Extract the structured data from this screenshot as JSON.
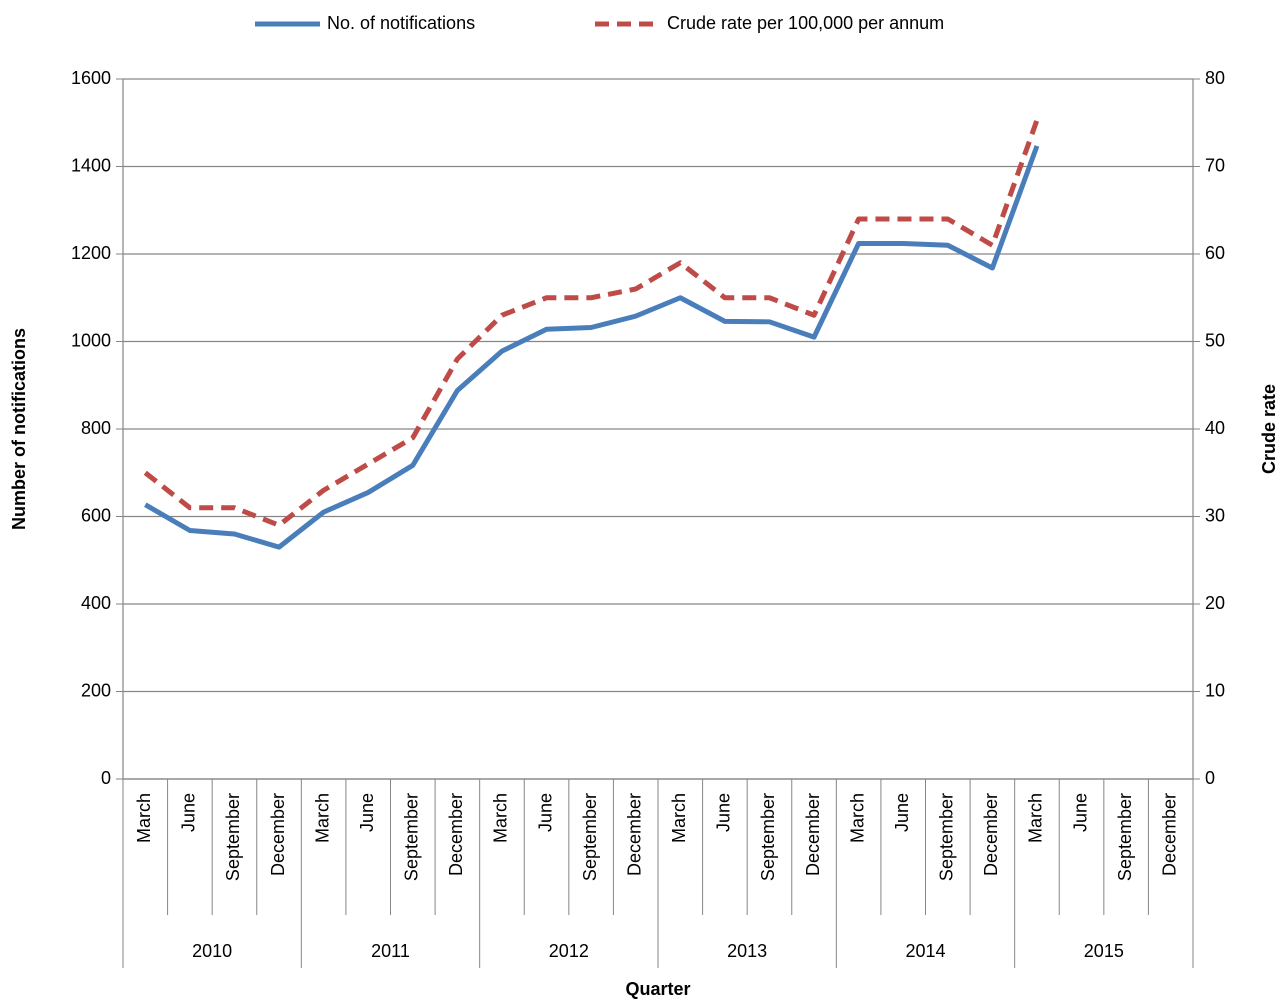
{
  "chart_data": {
    "type": "line",
    "x_label": "Quarter",
    "y_label": "Number of notifications",
    "y2_label": "Crude rate",
    "categories": [
      "March",
      "June",
      "September",
      "December",
      "March",
      "June",
      "September",
      "December",
      "March",
      "June",
      "September",
      "December",
      "March",
      "June",
      "September",
      "December",
      "March",
      "June",
      "September",
      "December",
      "March",
      "June",
      "September",
      "December"
    ],
    "category_groups": [
      "2010",
      "2011",
      "2012",
      "2013",
      "2014",
      "2015"
    ],
    "series": [
      {
        "name": "No. of notifications",
        "color": "#4a7ebb",
        "line_style": "solid",
        "values": [
          627,
          568,
          560,
          530,
          610,
          655,
          717,
          888,
          978,
          1028,
          1032,
          1058,
          1100,
          1046,
          1045,
          1010,
          1224,
          1224,
          1220,
          1168,
          1447,
          null,
          null,
          null
        ]
      },
      {
        "name": "Crude rate per 100,000 per annum",
        "color": "#be4b48",
        "line_style": "dashed",
        "axis": "y2",
        "values": [
          35,
          31,
          31,
          29,
          33,
          36,
          39,
          48,
          53,
          55,
          55,
          56,
          59,
          55,
          55,
          53,
          64,
          64,
          64,
          61,
          75.3,
          null,
          null,
          null
        ]
      }
    ],
    "ylim": [
      0,
      1600
    ],
    "yticks": [
      0,
      200,
      400,
      600,
      800,
      1000,
      1200,
      1400,
      1600
    ],
    "y2lim": [
      0,
      80
    ],
    "y2ticks": [
      0,
      10,
      20,
      30,
      40,
      50,
      60,
      70,
      80
    ],
    "grid": true,
    "legend": "top"
  }
}
